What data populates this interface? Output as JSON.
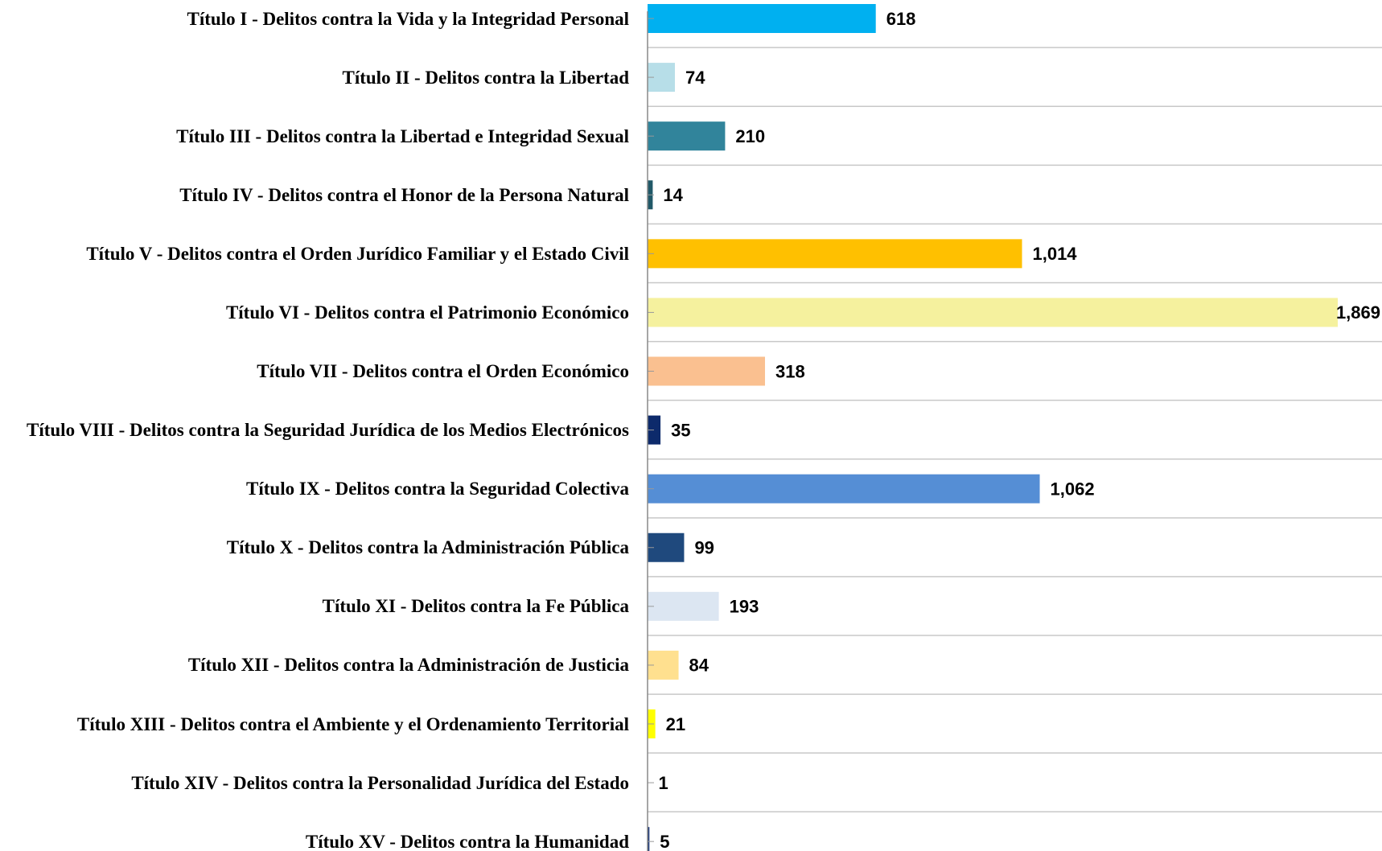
{
  "chart_data": {
    "type": "bar",
    "orientation": "horizontal",
    "categories": [
      "Título I - Delitos contra la Vida y la Integridad Personal",
      "Título II - Delitos contra la Libertad",
      "Título III - Delitos contra la Libertad e Integridad Sexual",
      "Título IV - Delitos contra el Honor de la Persona  Natural",
      "Título V - Delitos contra el Orden Jurídico Familiar y el Estado Civil",
      "Título VI - Delitos contra el Patrimonio Económico",
      "Título VII - Delitos contra el Orden Económico",
      "Título VIII - Delitos  contra la Seguridad Jurídica de los Medios Electrónicos",
      "Título IX - Delitos contra la Seguridad Colectiva",
      "Título X - Delitos contra la Administración Pública",
      "Título XI - Delitos contra la Fe Pública",
      "Título XII - Delitos contra la Administración de Justicia",
      "Título XIII - Delitos contra el Ambiente y el Ordenamiento Territorial",
      "Título XIV - Delitos contra la Personalidad Jurídica del Estado",
      "Título XV - Delitos contra la Humanidad"
    ],
    "values": [
      618,
      74,
      210,
      14,
      1014,
      1869,
      318,
      35,
      1062,
      99,
      193,
      84,
      21,
      1,
      5
    ],
    "value_labels": [
      "618",
      "74",
      "210",
      "14",
      "1,014",
      "1,869",
      "318",
      "35",
      "1,062",
      "99",
      "193",
      "84",
      "21",
      "1",
      "5"
    ],
    "colors": [
      "#00b0f0",
      "#b7dee8",
      "#31849b",
      "#215968",
      "#ffc000",
      "#f5f19e",
      "#fac090",
      "#0d2a6b",
      "#558ed5",
      "#1f497d",
      "#dce6f2",
      "#ffe08f",
      "#ffff00",
      "#bfbfbf",
      "#1f3a7a"
    ],
    "grid": true
  }
}
